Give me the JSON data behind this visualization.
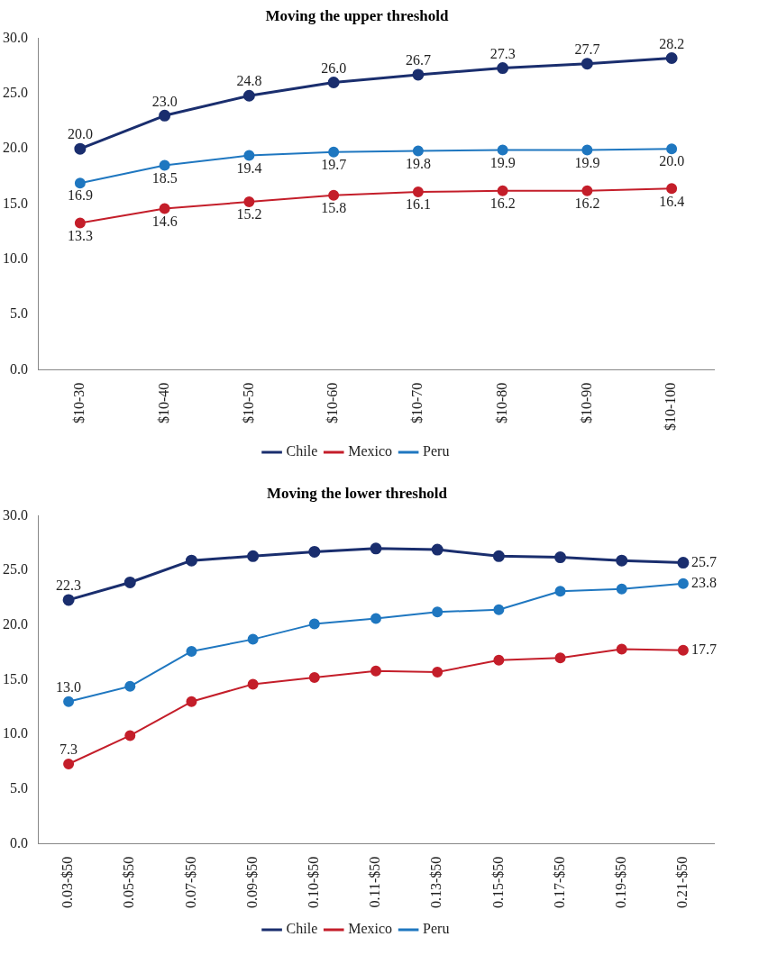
{
  "chart_data": [
    {
      "type": "line",
      "title": "Moving the upper threshold",
      "categories": [
        "$10-30",
        "$10-40",
        "$10-50",
        "$10-60",
        "$10-70",
        "$10-80",
        "$10-90",
        "$10-100"
      ],
      "series": [
        {
          "name": "Chile",
          "color": "#1a2e6e",
          "values": [
            20.0,
            23.0,
            24.8,
            26.0,
            26.7,
            27.3,
            27.7,
            28.2
          ],
          "value_labels": [
            "20.0",
            "23.0",
            "24.8",
            "26.0",
            "26.7",
            "27.3",
            "27.7",
            "28.2"
          ]
        },
        {
          "name": "Mexico",
          "color": "#c41e2a",
          "values": [
            13.3,
            14.6,
            15.2,
            15.8,
            16.1,
            16.2,
            16.2,
            16.4
          ],
          "value_labels": [
            "13.3",
            "14.6",
            "15.2",
            "15.8",
            "16.1",
            "16.2",
            "16.2",
            "16.4"
          ]
        },
        {
          "name": "Peru",
          "color": "#1f77c0",
          "values": [
            16.9,
            18.5,
            19.4,
            19.7,
            19.8,
            19.9,
            19.9,
            20.0
          ],
          "value_labels": [
            "16.9",
            "18.5",
            "19.4",
            "19.7",
            "19.8",
            "19.9",
            "19.9",
            "20.0"
          ]
        }
      ],
      "ylim": [
        0,
        30
      ],
      "yticks": [
        {
          "value": 0,
          "label": "0.0"
        },
        {
          "value": 5,
          "label": "5.0"
        },
        {
          "value": 10,
          "label": "10.0"
        },
        {
          "value": 15,
          "label": "15.0"
        },
        {
          "value": 20,
          "label": "20.0"
        },
        {
          "value": 25,
          "label": "25.0"
        },
        {
          "value": 30,
          "label": "30.0"
        }
      ],
      "grid": false,
      "legend": "bottom",
      "marker": "circle",
      "line_style": "solid"
    },
    {
      "type": "line",
      "title": "Moving the lower threshold",
      "categories": [
        "0.03-$50",
        "0.05-$50",
        "0.07-$50",
        "0.09-$50",
        "0.10-$50",
        "0.11-$50",
        "0.13-$50",
        "0.15-$50",
        "0.17-$50",
        "0.19-$50",
        "0.21-$50"
      ],
      "series": [
        {
          "name": "Chile",
          "color": "#1a2e6e",
          "values": [
            22.3,
            23.9,
            25.9,
            26.3,
            26.7,
            27.0,
            26.9,
            26.3,
            26.2,
            25.9,
            25.7
          ],
          "value_labels": [
            "22.3",
            null,
            null,
            null,
            null,
            null,
            null,
            null,
            null,
            null,
            "25.7"
          ]
        },
        {
          "name": "Mexico",
          "color": "#c41e2a",
          "values": [
            7.3,
            9.9,
            13.0,
            14.6,
            15.2,
            15.8,
            15.7,
            16.8,
            17.0,
            17.8,
            17.7
          ],
          "value_labels": [
            "7.3",
            null,
            null,
            null,
            null,
            null,
            null,
            null,
            null,
            null,
            "17.7"
          ]
        },
        {
          "name": "Peru",
          "color": "#1f77c0",
          "values": [
            13.0,
            14.4,
            17.6,
            18.7,
            20.1,
            20.6,
            21.2,
            21.4,
            23.1,
            23.3,
            23.8
          ],
          "value_labels": [
            "13.0",
            null,
            null,
            null,
            null,
            null,
            null,
            null,
            null,
            null,
            "23.8"
          ]
        }
      ],
      "ylim": [
        0,
        30
      ],
      "yticks": [
        {
          "value": 0,
          "label": "0.0"
        },
        {
          "value": 5,
          "label": "5.0"
        },
        {
          "value": 10,
          "label": "10.0"
        },
        {
          "value": 15,
          "label": "15.0"
        },
        {
          "value": 20,
          "label": "20.0"
        },
        {
          "value": 25,
          "label": "25.0"
        },
        {
          "value": 30,
          "label": "30.0"
        }
      ],
      "grid": false,
      "legend": "bottom",
      "marker": "circle",
      "line_style": "solid"
    }
  ]
}
